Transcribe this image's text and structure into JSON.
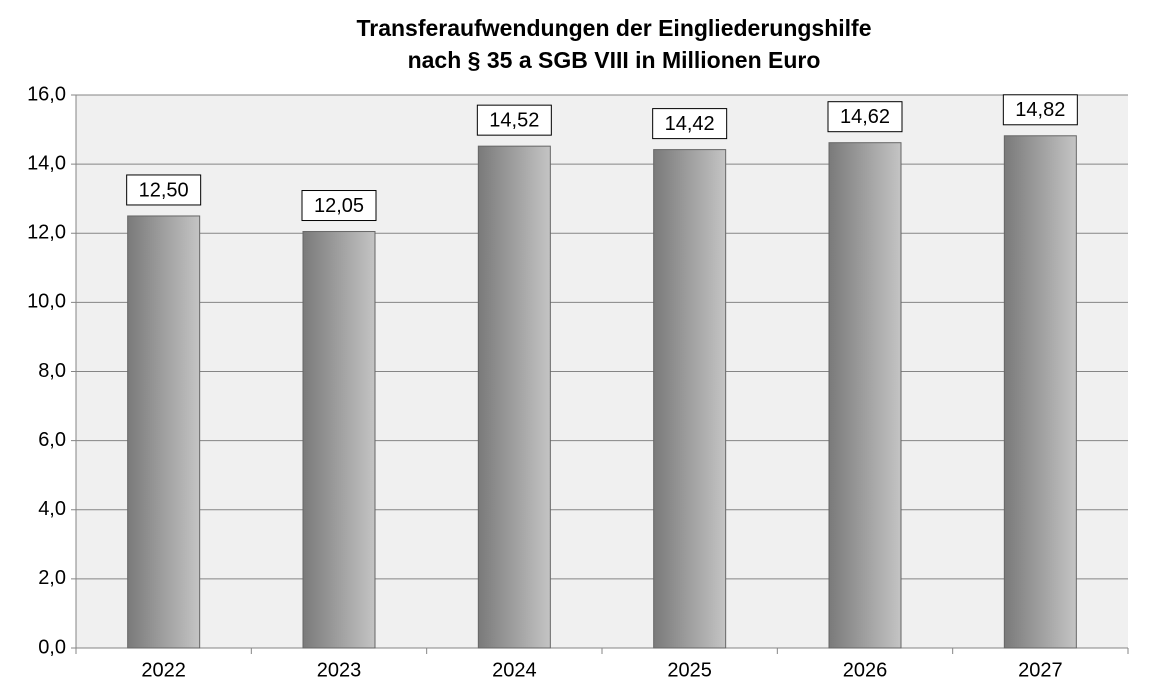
{
  "chart_data": {
    "type": "bar",
    "title": [
      "Transferaufwendungen der Eingliederungshilfe",
      "nach § 35 a SGB VIII in Millionen Euro"
    ],
    "categories": [
      "2022",
      "2023",
      "2024",
      "2025",
      "2026",
      "2027"
    ],
    "values": [
      12.5,
      12.05,
      14.52,
      14.42,
      14.62,
      14.82
    ],
    "value_labels": [
      "12,50",
      "12,05",
      "14,52",
      "14,42",
      "14,62",
      "14,82"
    ],
    "color": "#999999",
    "ylim": [
      0,
      16
    ],
    "yticks": [
      {
        "value": 0,
        "label": "0,0"
      },
      {
        "value": 2,
        "label": "2,0"
      },
      {
        "value": 4,
        "label": "4,0"
      },
      {
        "value": 6,
        "label": "6,0"
      },
      {
        "value": 8,
        "label": "8,0"
      },
      {
        "value": 10,
        "label": "10,0"
      },
      {
        "value": 12,
        "label": "12,0"
      },
      {
        "value": 14,
        "label": "14,0"
      },
      {
        "value": 16,
        "label": "16,0"
      }
    ],
    "grid": true
  }
}
